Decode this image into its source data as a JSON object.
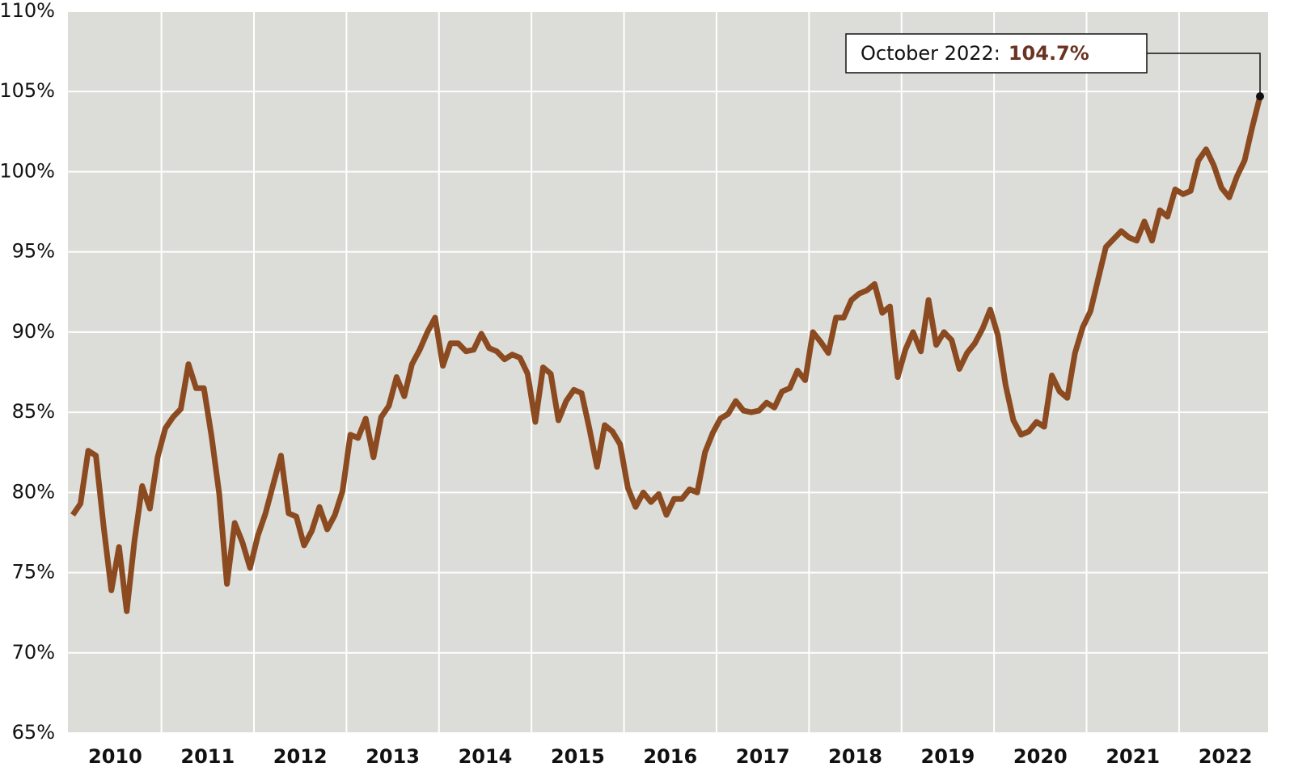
{
  "chart_data": {
    "type": "line",
    "categories": [
      null,
      null,
      null,
      null,
      null,
      null,
      "2010",
      null,
      null,
      null,
      null,
      null,
      null,
      null,
      null,
      null,
      null,
      null,
      "2011",
      null,
      null,
      null,
      null,
      null,
      null,
      null,
      null,
      null,
      null,
      null,
      "2012",
      null,
      null,
      null,
      null,
      null,
      null,
      null,
      null,
      null,
      null,
      null,
      "2013",
      null,
      null,
      null,
      null,
      null,
      null,
      null,
      null,
      null,
      null,
      null,
      "2014",
      null,
      null,
      null,
      null,
      null,
      null,
      null,
      null,
      null,
      null,
      null,
      "2015",
      null,
      null,
      null,
      null,
      null,
      null,
      null,
      null,
      null,
      null,
      null,
      "2016",
      null,
      null,
      null,
      null,
      null,
      null,
      null,
      null,
      null,
      null,
      null,
      "2017",
      null,
      null,
      null,
      null,
      null,
      null,
      null,
      null,
      null,
      null,
      null,
      "2018",
      null,
      null,
      null,
      null,
      null,
      null,
      null,
      null,
      null,
      null,
      null,
      "2019",
      null,
      null,
      null,
      null,
      null,
      null,
      null,
      null,
      null,
      null,
      null,
      "2020",
      null,
      null,
      null,
      null,
      null,
      null,
      null,
      null,
      null,
      null,
      null,
      "2021",
      null,
      null,
      null,
      null,
      null,
      null,
      null,
      null,
      null,
      null,
      null,
      "2022",
      null,
      null,
      null,
      null
    ],
    "series": [
      {
        "color": "#8b4a1f",
        "values": [
          78.6,
          79.3,
          82.6,
          82.3,
          77.9,
          73.9,
          76.6,
          72.6,
          77.0,
          80.4,
          79.0,
          82.2,
          84.0,
          84.7,
          85.2,
          88.0,
          86.5,
          86.5,
          83.5,
          79.9,
          74.3,
          78.1,
          76.9,
          75.3,
          77.3,
          78.7,
          80.5,
          82.3,
          78.7,
          78.5,
          76.7,
          77.6,
          79.1,
          77.7,
          78.6,
          80.1,
          83.6,
          83.4,
          84.6,
          82.2,
          84.7,
          85.4,
          87.2,
          86.0,
          88.0,
          88.9,
          90.0,
          90.9,
          87.9,
          89.3,
          89.3,
          88.8,
          88.9,
          89.9,
          89.0,
          88.8,
          88.3,
          88.6,
          88.4,
          87.4,
          84.4,
          87.8,
          87.4,
          84.5,
          85.7,
          86.4,
          86.2,
          84.0,
          81.6,
          84.2,
          83.8,
          83.0,
          80.3,
          79.1,
          80.0,
          79.4,
          79.9,
          78.6,
          79.6,
          79.6,
          80.2,
          80.0,
          82.5,
          83.7,
          84.6,
          84.9,
          85.7,
          85.1,
          85.0,
          85.1,
          85.6,
          85.3,
          86.3,
          86.5,
          87.6,
          87.0,
          90.0,
          89.4,
          88.7,
          90.9,
          90.9,
          92.0,
          92.4,
          92.6,
          93.0,
          91.2,
          91.6,
          87.2,
          88.9,
          90.0,
          88.8,
          92.0,
          89.2,
          90.0,
          89.5,
          87.7,
          88.7,
          89.3,
          90.2,
          91.4,
          89.8,
          86.7,
          84.5,
          83.6,
          83.8,
          84.4,
          84.1,
          87.3,
          86.3,
          85.9,
          88.7,
          90.3,
          91.3,
          93.3,
          95.3,
          95.8,
          96.3,
          95.9,
          95.7,
          96.9,
          95.7,
          97.6,
          97.2,
          98.9,
          98.6,
          98.8,
          100.7,
          101.4,
          100.4,
          99.0,
          98.4,
          99.7,
          100.7,
          102.8,
          104.7
        ]
      }
    ],
    "ylim": [
      65,
      110
    ],
    "yticks": [
      {
        "value": 65,
        "label": "65%"
      },
      {
        "value": 70,
        "label": "70%"
      },
      {
        "value": 75,
        "label": "75%"
      },
      {
        "value": 80,
        "label": "80%"
      },
      {
        "value": 85,
        "label": "85%"
      },
      {
        "value": 90,
        "label": "90%"
      },
      {
        "value": 95,
        "label": "95%"
      },
      {
        "value": 100,
        "label": "100%"
      },
      {
        "value": 105,
        "label": "105%"
      },
      {
        "value": 110,
        "label": "110%"
      }
    ],
    "grid": true,
    "annotation": {
      "text": "October 2022:",
      "value_label": "104.7%"
    }
  }
}
